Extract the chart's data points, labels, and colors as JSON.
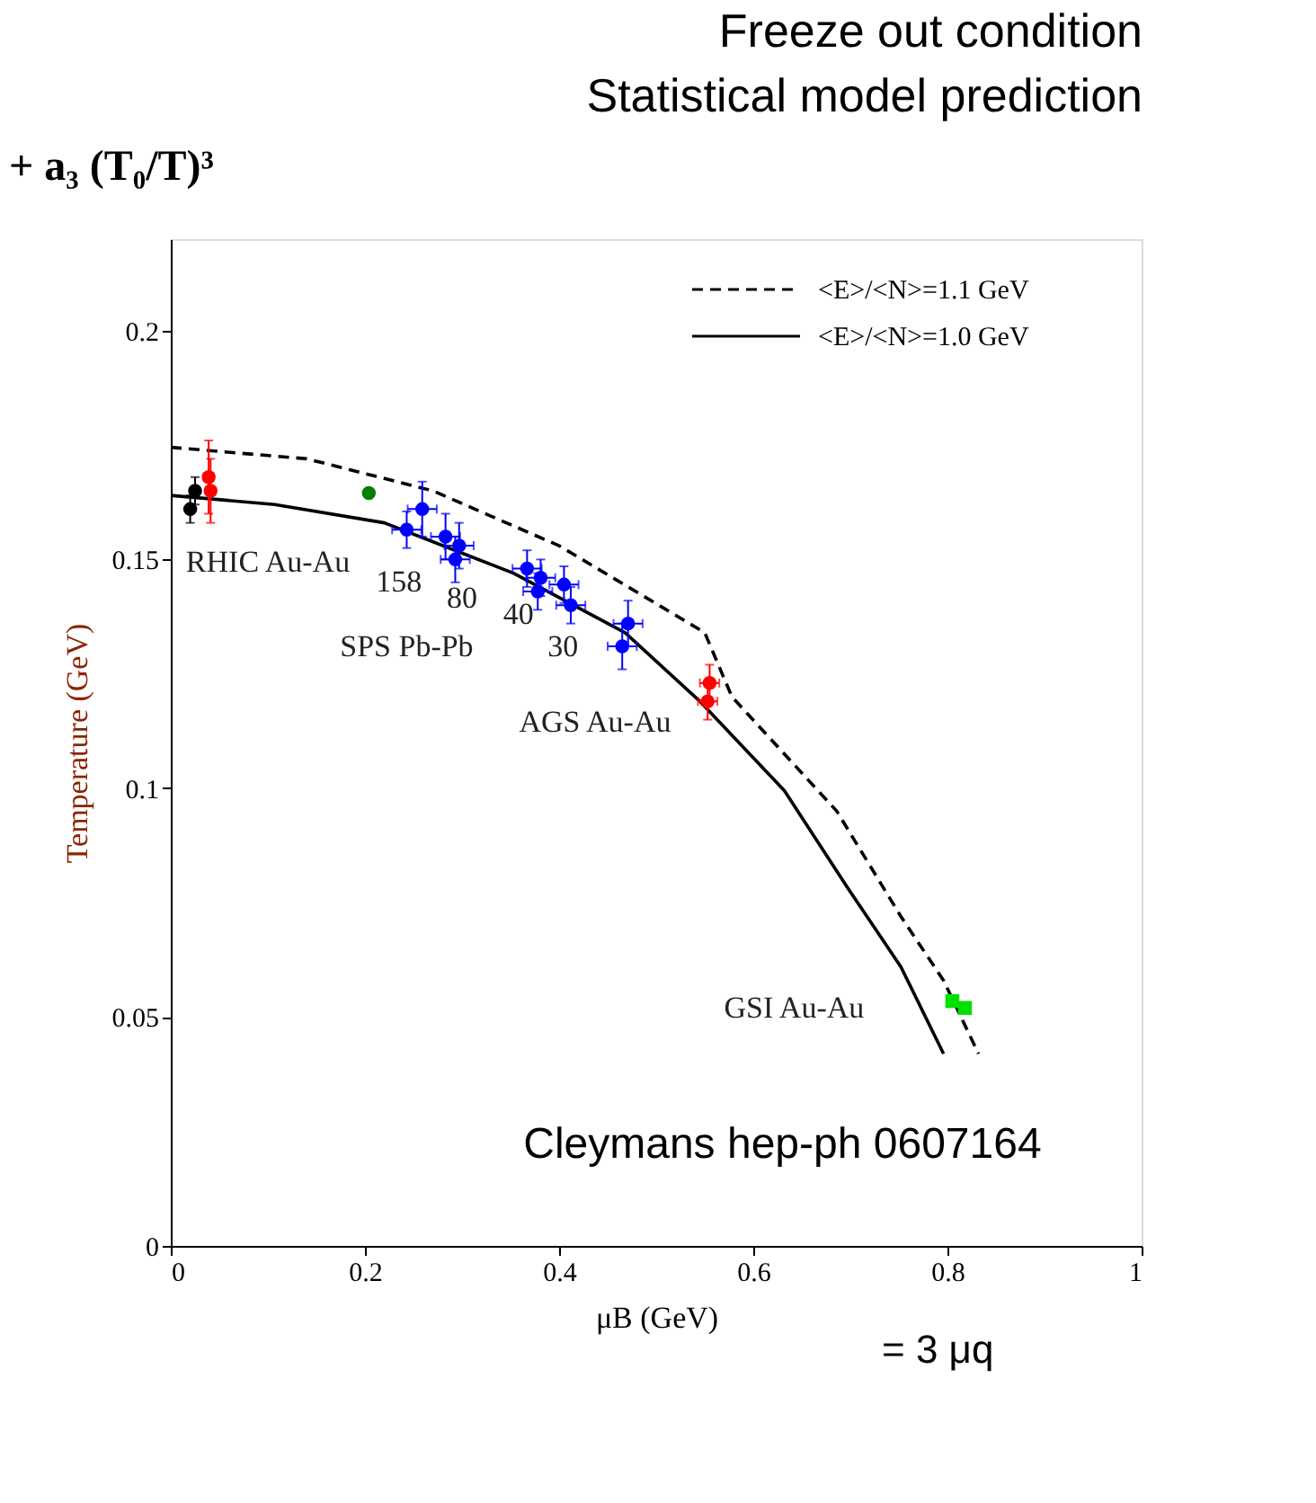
{
  "chart_data": {
    "type": "scatter",
    "title": "Freeze out condition",
    "subtitle": "Statistical model prediction",
    "xlabel": "μB (GeV)",
    "ylabel": "Temperature (GeV)",
    "xlim": [
      0,
      1
    ],
    "ylim": [
      0,
      0.22
    ],
    "xticks": [
      0,
      0.2,
      0.4,
      0.6,
      0.8,
      1
    ],
    "yticks": [
      0,
      0.05,
      0.1,
      0.15,
      0.2
    ],
    "grid": false,
    "legend": "top right",
    "marker": "circle",
    "series": [
      {
        "name": "<E>/<N>=1.1 GeV",
        "type": "line",
        "color": "#000000",
        "line_style": "dashed",
        "marker": "none",
        "x": [
          0,
          0.14,
          0.27,
          0.4,
          0.55,
          0.578,
          0.686,
          0.752,
          0.796,
          0.832
        ],
        "values": [
          0.1745,
          0.172,
          0.165,
          0.153,
          0.134,
          0.12,
          0.095,
          0.072,
          0.058,
          0.042
        ]
      },
      {
        "name": "<E>/<N>=1.0 GeV",
        "type": "line",
        "color": "#000000",
        "line_style": "solid",
        "marker": "none",
        "x": [
          0,
          0.107,
          0.22,
          0.353,
          0.468,
          0.545,
          0.632,
          0.698,
          0.752,
          0.796
        ],
        "values": [
          0.164,
          0.162,
          0.158,
          0.147,
          0.134,
          0.119,
          0.0995,
          0.078,
          0.061,
          0.042
        ]
      },
      {
        "color": "#000000",
        "x": [
          0.02,
          0.025
        ],
        "values": [
          0.161,
          0.165
        ],
        "errors": [
          0.003,
          0.003
        ]
      },
      {
        "color": "#ff0000",
        "x": [
          0.039,
          0.041,
          0.555,
          0.553
        ],
        "values": [
          0.168,
          0.165,
          0.123,
          0.119
        ],
        "errors": [
          0.008,
          0.007,
          0.004,
          0.004
        ],
        "xerrors": [
          0.005,
          0.005,
          0.01,
          0.01
        ]
      },
      {
        "color": "#008000",
        "x": [
          0.204
        ],
        "values": [
          0.1645
        ]
      },
      {
        "color": "#0000ff",
        "x": [
          0.259,
          0.243,
          0.283,
          0.297,
          0.293,
          0.367,
          0.381,
          0.378,
          0.405,
          0.412,
          0.471,
          0.465
        ],
        "values": [
          0.161,
          0.1565,
          0.155,
          0.153,
          0.15,
          0.148,
          0.146,
          0.143,
          0.1445,
          0.14,
          0.136,
          0.131
        ],
        "errors": [
          0.006,
          0.004,
          0.005,
          0.005,
          0.005,
          0.004,
          0.004,
          0.004,
          0.004,
          0.004,
          0.005,
          0.005
        ],
        "xerrors": [
          0.015,
          0.015,
          0.015,
          0.015,
          0.015,
          0.015,
          0.015,
          0.015,
          0.015,
          0.015,
          0.015,
          0.015
        ]
      },
      {
        "color": "#00e000",
        "marker": "square",
        "x": [
          0.805,
          0.818
        ],
        "values": [
          0.0535,
          0.052
        ]
      }
    ],
    "annotations": [
      "+ a₃ (T₀/T)³",
      "RHIC Au-Au",
      "158",
      "80",
      "40",
      "30",
      "SPS Pb-Pb",
      "AGS Au-Au",
      "GSI Au-Au",
      "Cleymans hep-ph 0607164",
      "= 3 μq"
    ]
  }
}
